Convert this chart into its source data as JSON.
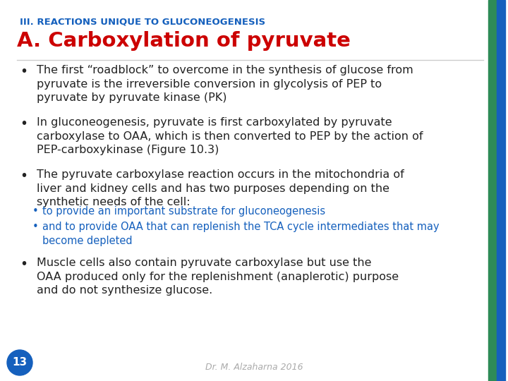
{
  "title_top": "III. REACTIONS UNIQUE TO GLUCONEOGENESIS",
  "title_top_color": "#1560bd",
  "title_main": "A. Carboxylation of pyruvate",
  "title_main_color": "#cc0000",
  "background_color": "#ffffff",
  "right_bar_green": "#2e8b57",
  "right_bar_blue": "#1560bd",
  "page_number": "13",
  "page_number_color": "#ffffff",
  "page_number_bg": "#1560bd",
  "footer_text": "Dr. M. Alzaharna 2016",
  "footer_color": "#aaaaaa",
  "bullets": [
    {
      "text": "The first “roadblock” to overcome in the synthesis of glucose from\npyruvate is the irreversible conversion in glycolysis of PEP to\npyruvate by pyruvate kinase (PK)",
      "color": "#222222",
      "indent": 0,
      "special": false,
      "fontsize": 11.5
    },
    {
      "text": "In gluconeogenesis, pyruvate is first carboxylated by pyruvate\ncarboxylase to OAA, which is then converted to PEP by the action of\nPEP-carboxykinase (Figure 10.3)",
      "color": "#222222",
      "indent": 0,
      "special": false,
      "fontsize": 11.5
    },
    {
      "text": "The pyruvate carboxylase reaction occurs in the mitochondria of\nliver and kidney cells and has two purposes depending on the\nsynthetic needs of the cell:",
      "color": "#222222",
      "indent": 0,
      "special": false,
      "fontsize": 11.5
    },
    {
      "text": "to provide an important substrate for gluconeogenesis",
      "color": "#1560bd",
      "indent": 1,
      "special": true,
      "fontsize": 10.5
    },
    {
      "text": "and to provide OAA that can replenish the TCA cycle intermediates that may\nbecome depleted",
      "color": "#1560bd",
      "indent": 1,
      "special": true,
      "fontsize": 10.5
    },
    {
      "text": "Muscle cells also contain pyruvate carboxylase but use the\nOAA produced only for the replenishment (anaplerotic) purpose\nand do not synthesize glucose.",
      "color": "#222222",
      "indent": 0,
      "special": false,
      "fontsize": 11.5
    }
  ]
}
